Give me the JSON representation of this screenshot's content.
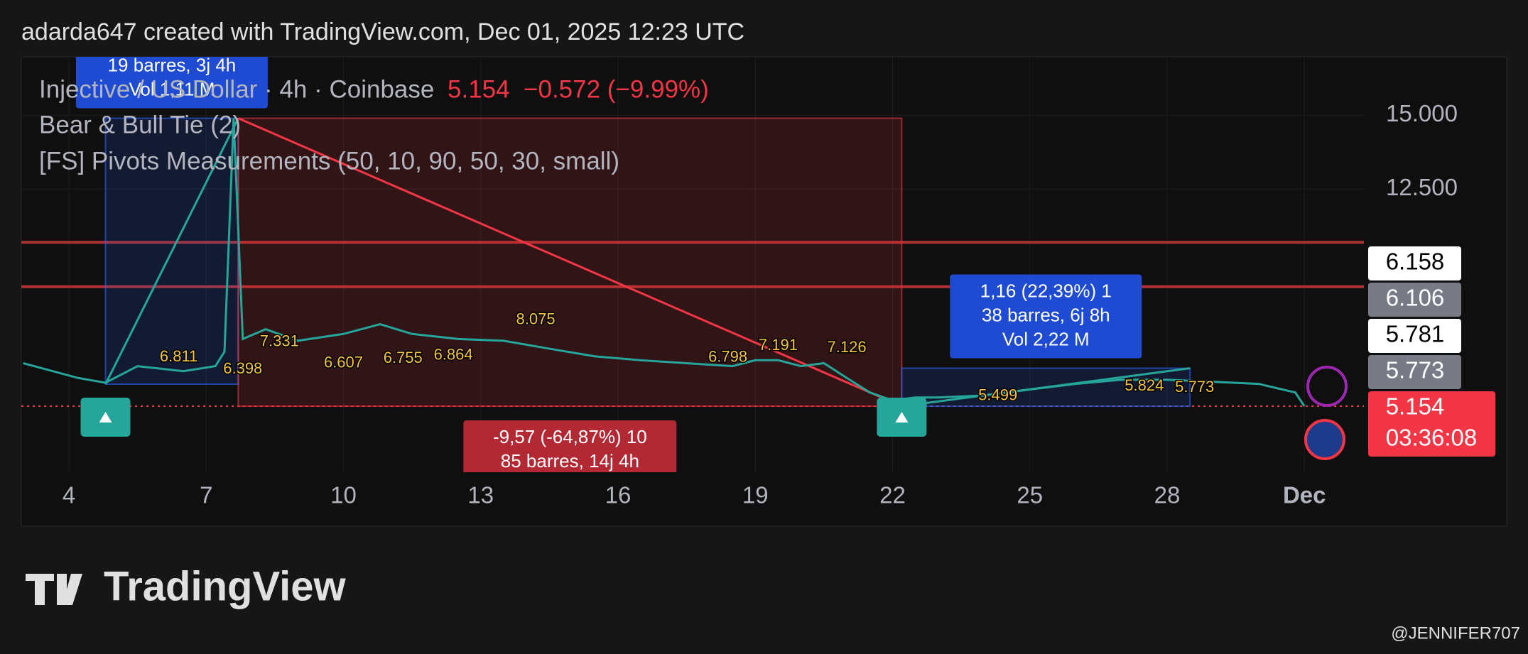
{
  "header": "adarda647 created with TradingView.com, Dec 01, 2025 12:23 UTC",
  "legend": {
    "symbol": "Injective / US Dollar · 4h · Coinbase",
    "quote": "5.154  −0.572 (−9.99%)",
    "indicators": [
      "Bear & Bull Tie (2)",
      "[FS] Pivots Measurements (50, 10, 90, 50, 30, small)"
    ]
  },
  "chart_data": {
    "type": "line",
    "color": "#26a69a",
    "x": [
      3.0,
      4.2,
      4.8,
      5.5,
      6.5,
      7.2,
      7.4,
      7.6,
      7.8,
      8.3,
      9,
      10,
      10.8,
      11.5,
      12.5,
      13.5,
      14.5,
      15.5,
      16.5,
      17.5,
      18.5,
      19,
      19.5,
      20,
      20.5,
      21,
      21.5,
      22,
      22.5,
      23,
      24,
      25,
      26,
      27,
      28,
      29,
      30,
      30.8,
      31
    ],
    "values": [
      6.61,
      6.11,
      5.95,
      6.51,
      6.34,
      6.51,
      7.0,
      14.9,
      7.43,
      7.76,
      7.37,
      7.6,
      7.93,
      7.6,
      7.43,
      7.37,
      7.1,
      6.84,
      6.71,
      6.61,
      6.51,
      6.71,
      6.71,
      6.51,
      6.61,
      6.11,
      5.62,
      5.35,
      5.45,
      5.45,
      5.52,
      5.72,
      5.91,
      6.05,
      6.05,
      5.98,
      5.91,
      5.62,
      5.154
    ],
    "xlim": [
      2.96,
      32.3
    ],
    "ylim": [
      2.92,
      16.98
    ],
    "xticks": [
      {
        "value": 4,
        "label": "4"
      },
      {
        "value": 7,
        "label": "7"
      },
      {
        "value": 10,
        "label": "10"
      },
      {
        "value": 13,
        "label": "13"
      },
      {
        "value": 16,
        "label": "16"
      },
      {
        "value": 19,
        "label": "19"
      },
      {
        "value": 22,
        "label": "22"
      },
      {
        "value": 25,
        "label": "25"
      },
      {
        "value": 28,
        "label": "28"
      },
      {
        "value": 31,
        "label": "Dec"
      }
    ],
    "yticks": [
      {
        "value": 12.5,
        "label": "12.500"
      },
      {
        "value": 15,
        "label": "15.000"
      }
    ],
    "grid": true,
    "levels": [
      10.7,
      9.2,
      5.154
    ],
    "measurements": [
      {
        "lines": [
          "19 barres, 3j 4h",
          "Vol 1,11 M"
        ],
        "x": [
          4.8,
          7.7
        ],
        "y": [
          5.9,
          14.9
        ],
        "color": "#2962ff"
      },
      {
        "lines": [
          "-9,57 (-64,87%) 10",
          "85 barres, 14j 4h"
        ],
        "x": [
          7.7,
          22.2
        ],
        "y": [
          5.154,
          14.9
        ],
        "color": "#f23645"
      },
      {
        "lines": [
          "1,16 (22,39%) 1",
          "38 barres, 6j 8h",
          "Vol 2,22 M"
        ],
        "x": [
          22.2,
          28.5
        ],
        "y": [
          5.154,
          6.44
        ],
        "color": "#2962ff"
      }
    ],
    "pivots": [
      {
        "x": 6.4,
        "value": 6.811
      },
      {
        "x": 7.8,
        "value": 6.398
      },
      {
        "x": 8.6,
        "value": 7.331
      },
      {
        "x": 10.0,
        "value": 6.607
      },
      {
        "x": 11.3,
        "value": 6.755
      },
      {
        "x": 12.4,
        "value": 6.864
      },
      {
        "x": 14.2,
        "value": 8.075
      },
      {
        "x": 18.4,
        "value": 6.798
      },
      {
        "x": 19.5,
        "value": 7.191
      },
      {
        "x": 21.0,
        "value": 7.126
      },
      {
        "x": 24.3,
        "value": 5.499
      },
      {
        "x": 27.5,
        "value": 5.824
      },
      {
        "x": 28.6,
        "value": 5.773
      }
    ],
    "price_tags": [
      {
        "value": 6.158,
        "bg": "#ffffff",
        "fg": "#000000"
      },
      {
        "value": 6.106,
        "bg": "#787b86",
        "fg": "#ffffff"
      },
      {
        "value": 5.781,
        "bg": "#ffffff",
        "fg": "#000000"
      },
      {
        "value": 5.773,
        "bg": "#787b86",
        "fg": "#ffffff"
      },
      {
        "value": 5.154,
        "bg": "#f23645",
        "fg": "#ffffff",
        "countdown": "03:36:08"
      }
    ]
  },
  "footer": {
    "logo": "TradingView",
    "credit": "@JENNIFER707"
  }
}
